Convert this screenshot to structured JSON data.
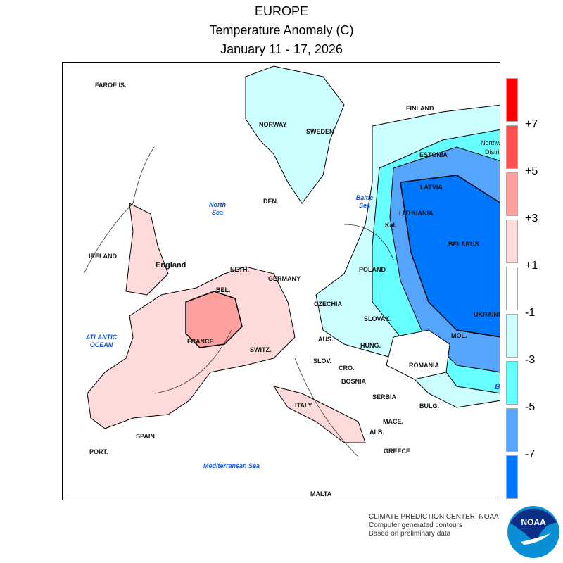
{
  "title": {
    "region": "EUROPE",
    "variable": "Temperature Anomaly (C)",
    "dates": "January 11 - 17, 2026"
  },
  "legend": {
    "boxes": [
      {
        "color": "#ff0000"
      },
      {
        "color": "#ff5050"
      },
      {
        "color": "#ffa0a0"
      },
      {
        "color": "#ffdada"
      },
      {
        "color": "#ffffff"
      },
      {
        "color": "#ccffff"
      },
      {
        "color": "#66ffff"
      },
      {
        "color": "#55a5ff"
      },
      {
        "color": "#0077ff"
      }
    ],
    "labels": [
      "+7",
      "+5",
      "+3",
      "+1",
      "-1",
      "-3",
      "-5",
      "-7"
    ]
  },
  "map": {
    "countries": [
      "FAROE IS.",
      "NORWAY",
      "SWEDEN",
      "FINLAND",
      "ESTONIA",
      "Northw",
      "Distri",
      "LATVIA",
      "LITHUANIA",
      "BELARUS",
      "Kal.",
      "DEN.",
      "IRELAND",
      "England",
      "NETH.",
      "BEL.",
      "GERMANY",
      "POLAND",
      "CZECHIA",
      "SLOVAK.",
      "UKRAINE",
      "MOL.",
      "AUS.",
      "HUNG.",
      "SWITZ.",
      "FRANCE",
      "SLOV.",
      "CRO.",
      "BOSNIA",
      "ROMANIA",
      "SERBIA",
      "BULG.",
      "MACE.",
      "ALB.",
      "GREECE",
      "ITALY",
      "SPAIN",
      "PORT.",
      "MALTA"
    ],
    "seas": [
      "North Sea",
      "Baltic Sea",
      "ATLANTIC OCEAN",
      "Mediterranean Sea",
      "B"
    ]
  },
  "credit": {
    "line1": "CLIMATE PREDICTION CENTER, NOAA",
    "line2": "Computer generated contours",
    "line3": "Based on preliminary data"
  },
  "logo": "NOAA"
}
